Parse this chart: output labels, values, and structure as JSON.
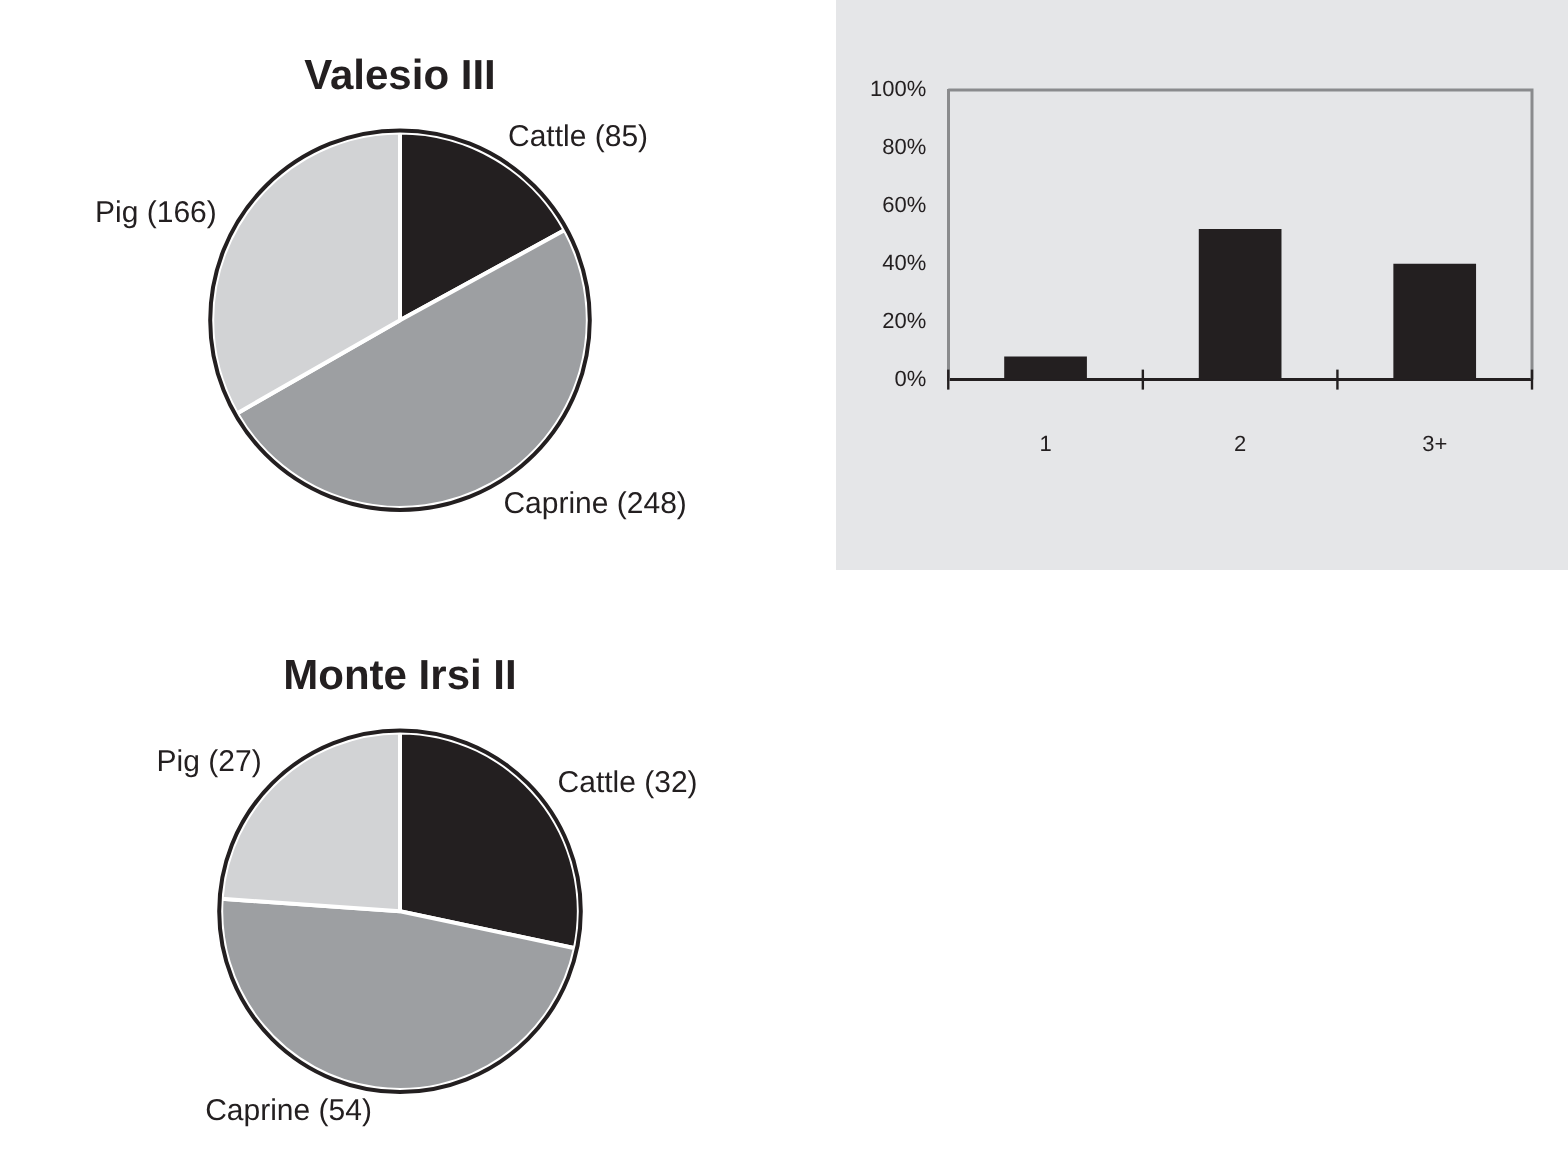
{
  "chart_data": [
    {
      "type": "pie",
      "title": "Valesio III",
      "categories": [
        "Cattle (85)",
        "Caprine (248)",
        "Pig (166)"
      ],
      "values": [
        85,
        248,
        166
      ],
      "colors": [
        "#231f20",
        "#9d9fa2",
        "#d2d3d5"
      ]
    },
    {
      "type": "bar",
      "categories": [
        "1",
        "2",
        "3+"
      ],
      "values": [
        8,
        52,
        40
      ],
      "color": "#231f20",
      "ylim": [
        0,
        100
      ],
      "yticks": [
        {
          "value": 0,
          "label": "0%"
        },
        {
          "value": 20,
          "label": "20%"
        },
        {
          "value": 40,
          "label": "40%"
        },
        {
          "value": 60,
          "label": "60%"
        },
        {
          "value": 80,
          "label": "80%"
        },
        {
          "value": 100,
          "label": "100%"
        }
      ],
      "grid": false
    },
    {
      "type": "pie",
      "title": "Monte Irsi II",
      "categories": [
        "Cattle (32)",
        "Caprine (54)",
        "Pig (27)"
      ],
      "values": [
        32,
        54,
        27
      ],
      "colors": [
        "#231f20",
        "#9d9fa2",
        "#d2d3d5"
      ]
    }
  ]
}
